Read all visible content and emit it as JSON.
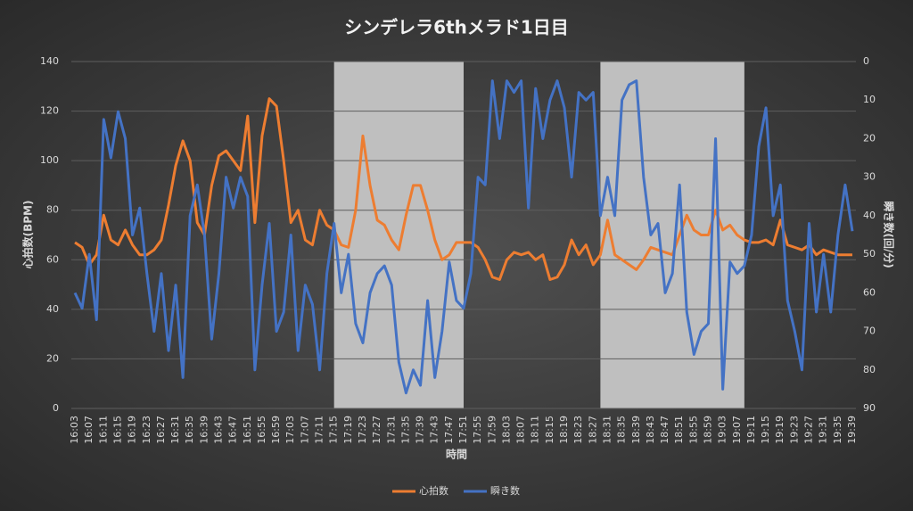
{
  "chart_data": {
    "type": "line",
    "title": "シンデレラ6thメラド1日目",
    "x_label": "時間",
    "y_label": "心拍数(BPM)",
    "y2_label": "瞬き数(回/分)",
    "categories": [
      "16:03",
      null,
      "16:07",
      null,
      "16:11",
      null,
      "16:15",
      null,
      "16:19",
      null,
      "16:23",
      null,
      "16:27",
      null,
      "16:31",
      null,
      "16:35",
      null,
      "16:39",
      null,
      "16:43",
      null,
      "16:47",
      null,
      "16:51",
      null,
      "16:55",
      null,
      "16:59",
      null,
      "17:03",
      null,
      "17:07",
      null,
      "17:11",
      null,
      "17:15",
      null,
      "17:19",
      null,
      "17:23",
      null,
      "17:27",
      null,
      "17:31",
      null,
      "17:35",
      null,
      "17:39",
      null,
      "17:43",
      null,
      "17:47",
      null,
      "17:51",
      null,
      "17:55",
      null,
      "17:59",
      null,
      "18:03",
      null,
      "18:07",
      null,
      "18:11",
      null,
      "18:15",
      null,
      "18:19",
      null,
      "18:23",
      null,
      "18:27",
      null,
      "18:31",
      null,
      "18:35",
      null,
      "18:39",
      null,
      "18:43",
      null,
      "18:47",
      null,
      "18:51",
      null,
      "18:55",
      null,
      "18:59",
      null,
      "19:03",
      null,
      "19:07",
      null,
      "19:11",
      null,
      "19:15",
      null,
      "19:19",
      null,
      "19:23",
      null,
      "19:27",
      null,
      "19:31",
      null,
      "19:35",
      null,
      "19:39"
    ],
    "series": [
      {
        "name": "心拍数",
        "color": "#ed7d31",
        "values": [
          67,
          65,
          58,
          62,
          78,
          68,
          66,
          72,
          66,
          62,
          62,
          64,
          68,
          82,
          98,
          108,
          100,
          75,
          70,
          90,
          102,
          104,
          100,
          96,
          118,
          75,
          110,
          125,
          122,
          100,
          75,
          80,
          68,
          66,
          80,
          74,
          72,
          66,
          65,
          80,
          110,
          90,
          76,
          74,
          68,
          64,
          78,
          90,
          90,
          80,
          68,
          60,
          62,
          67,
          67,
          67,
          65,
          60,
          53,
          52,
          60,
          63,
          62,
          63,
          60,
          62,
          52,
          53,
          58,
          68,
          62,
          66,
          58,
          62,
          76,
          62,
          60,
          58,
          56,
          60,
          65,
          64,
          63,
          62,
          70,
          78,
          72,
          70,
          70,
          80,
          72,
          74,
          70,
          68,
          67,
          67,
          68,
          66,
          76,
          66,
          65,
          64,
          66,
          62,
          64,
          63,
          62,
          62,
          62
        ]
      },
      {
        "name": "瞬き数",
        "color": "#4472c4",
        "axis": "y2",
        "values": [
          60,
          64,
          50,
          67,
          15,
          25,
          13,
          20,
          45,
          38,
          55,
          70,
          55,
          75,
          58,
          82,
          40,
          32,
          45,
          72,
          55,
          30,
          38,
          30,
          35,
          80,
          58,
          42,
          70,
          65,
          45,
          75,
          58,
          63,
          80,
          55,
          42,
          60,
          50,
          68,
          73,
          60,
          55,
          53,
          58,
          78,
          86,
          80,
          84,
          62,
          82,
          70,
          52,
          62,
          64,
          55,
          30,
          32,
          5,
          20,
          5,
          8,
          5,
          38,
          7,
          20,
          10,
          5,
          12,
          30,
          8,
          10,
          8,
          40,
          30,
          40,
          10,
          6,
          5,
          30,
          45,
          42,
          60,
          55,
          32,
          65,
          76,
          70,
          68,
          20,
          85,
          52,
          55,
          53,
          45,
          22,
          12,
          40,
          32,
          62,
          70,
          80,
          42,
          65,
          50,
          65,
          45,
          32,
          44
        ]
      }
    ],
    "ylim": [
      0,
      140
    ],
    "yticks": [
      0,
      20,
      40,
      60,
      80,
      100,
      120,
      140
    ],
    "y2lim": [
      90,
      0
    ],
    "y2ticks": [
      0,
      10,
      20,
      30,
      40,
      50,
      60,
      70,
      80,
      90
    ],
    "grid": true,
    "legend": "bottom",
    "shaded_ranges": [
      [
        36,
        54
      ],
      [
        73,
        93
      ]
    ],
    "shade_color": "#bfbfbf"
  }
}
